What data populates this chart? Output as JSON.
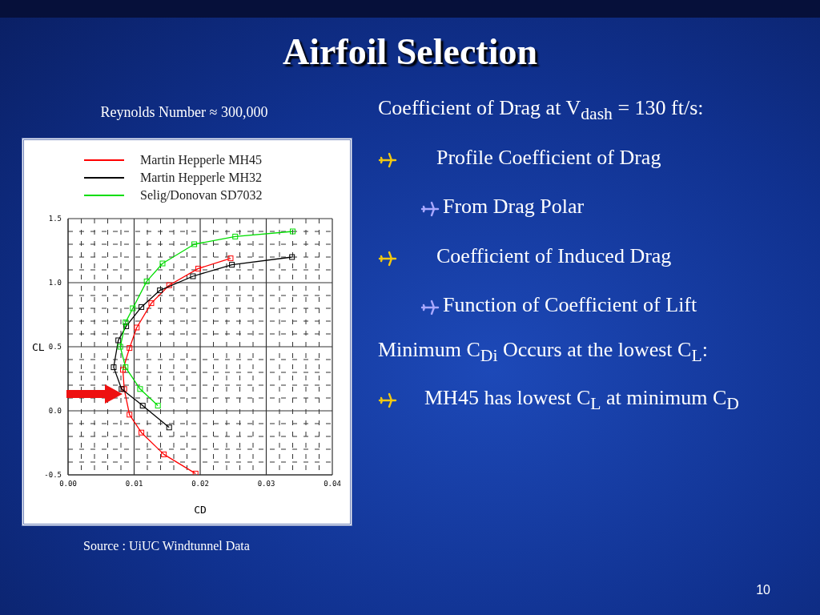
{
  "chart_data": {
    "type": "line",
    "title": "Airfoil Selection",
    "subtitle": "Reynolds Number ≈ 300,000",
    "xlabel": "CD",
    "ylabel": "CL",
    "series": [
      {
        "name": "Martin Hepperle MH45",
        "color": "#ff0000",
        "x": [
          0.0246,
          0.0197,
          0.0153,
          0.0126,
          0.0104,
          0.0093,
          0.0083,
          0.0085,
          0.0093,
          0.0111,
          0.0145,
          0.0193
        ],
        "values": [
          1.19,
          1.11,
          0.98,
          0.84,
          0.65,
          0.49,
          0.32,
          0.17,
          -0.03,
          -0.17,
          -0.34,
          -0.49
        ]
      },
      {
        "name": "Martin Hepperle MH32",
        "color": "#000000",
        "x": [
          0.0339,
          0.0248,
          0.0189,
          0.0139,
          0.0111,
          0.0088,
          0.0076,
          0.0069,
          0.0081,
          0.0113,
          0.0153
        ],
        "values": [
          1.2,
          1.14,
          1.05,
          0.94,
          0.81,
          0.66,
          0.55,
          0.34,
          0.17,
          0.04,
          -0.13
        ]
      },
      {
        "name": "Selig/Donovan SD7032",
        "color": "#00dd00",
        "x": [
          0.034,
          0.0253,
          0.0191,
          0.0143,
          0.0119,
          0.0098,
          0.0087,
          0.0079,
          0.0087,
          0.0109,
          0.0136
        ],
        "values": [
          1.4,
          1.36,
          1.3,
          1.15,
          1.01,
          0.8,
          0.69,
          0.5,
          0.34,
          0.17,
          0.04
        ]
      }
    ],
    "xlim": [
      0,
      0.04
    ],
    "xticks": [
      {
        "value": 0,
        "label": "0.00"
      },
      {
        "value": 0.002,
        "label": null
      },
      {
        "value": 0.004,
        "label": null
      },
      {
        "value": 0.006,
        "label": null
      },
      {
        "value": 0.008,
        "label": null
      },
      {
        "value": 0.01,
        "label": "0.01"
      },
      {
        "value": 0.012,
        "label": null
      },
      {
        "value": 0.014,
        "label": null
      },
      {
        "value": 0.016,
        "label": null
      },
      {
        "value": 0.018,
        "label": null
      },
      {
        "value": 0.02,
        "label": "0.02"
      },
      {
        "value": 0.022,
        "label": null
      },
      {
        "value": 0.024,
        "label": null
      },
      {
        "value": 0.026,
        "label": null
      },
      {
        "value": 0.028,
        "label": null
      },
      {
        "value": 0.03,
        "label": "0.03"
      },
      {
        "value": 0.032,
        "label": null
      },
      {
        "value": 0.034,
        "label": null
      },
      {
        "value": 0.036,
        "label": null
      },
      {
        "value": 0.038,
        "label": null
      },
      {
        "value": 0.04,
        "label": "0.04"
      }
    ],
    "ylim": [
      -0.5,
      1.5
    ],
    "yticks": [
      {
        "value": -0.5,
        "label": "-0.5"
      },
      {
        "value": -0.4,
        "label": null
      },
      {
        "value": -0.3,
        "label": null
      },
      {
        "value": -0.2,
        "label": null
      },
      {
        "value": -0.1,
        "label": null
      },
      {
        "value": 0,
        "label": "0.0"
      },
      {
        "value": 0.1,
        "label": null
      },
      {
        "value": 0.2,
        "label": null
      },
      {
        "value": 0.3,
        "label": null
      },
      {
        "value": 0.4,
        "label": null
      },
      {
        "value": 0.5,
        "label": "0.5"
      },
      {
        "value": 0.6,
        "label": null
      },
      {
        "value": 0.7,
        "label": null
      },
      {
        "value": 0.8,
        "label": null
      },
      {
        "value": 0.9,
        "label": null
      },
      {
        "value": 1.0,
        "label": "1.0"
      },
      {
        "value": 1.1,
        "label": null
      },
      {
        "value": 1.2,
        "label": null
      },
      {
        "value": 1.3,
        "label": null
      },
      {
        "value": 1.4,
        "label": null
      },
      {
        "value": 1.5,
        "label": "1.5"
      }
    ],
    "grid": true,
    "legend": "top",
    "marker": "square",
    "line_style": "solid",
    "annotations": [
      "Coefficient of Drag at V$_{dash}$ = 130 ft/s:",
      "Profile Coefficient of Drag",
      "From Drag Polar",
      "Coefficient of Induced Drag",
      "Function of Coefficient of Lift",
      "Minimum C$_{Di}$ Occurs at the lowest C$_{L}$:",
      "MH45 has lowest C$_{L}$ at minimum C$_{D}$",
      "Source : UiUC Windtunnel Data",
      "10"
    ]
  }
}
